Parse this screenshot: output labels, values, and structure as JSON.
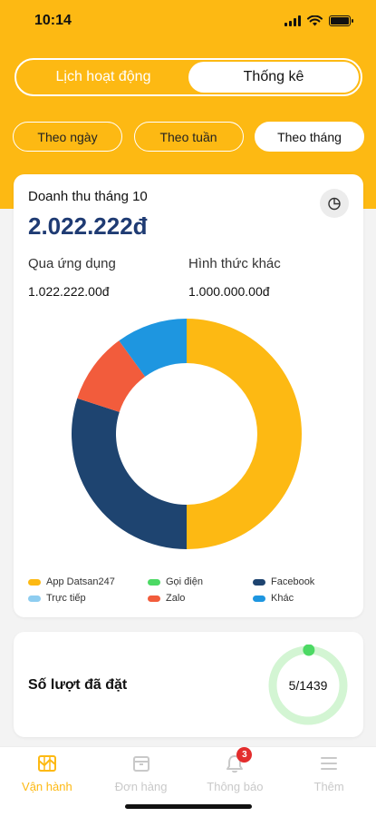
{
  "status_bar": {
    "time": "10:14"
  },
  "view_tabs": [
    {
      "label": "Lịch hoạt động",
      "active": false
    },
    {
      "label": "Thống kê",
      "active": true
    }
  ],
  "period_filters": [
    {
      "label": "Theo ngày",
      "active": false
    },
    {
      "label": "Theo tuần",
      "active": false
    },
    {
      "label": "Theo tháng",
      "active": true
    }
  ],
  "revenue": {
    "title": "Doanh thu tháng 10",
    "total": "2.022.222đ",
    "app_label": "Qua ứng dụng",
    "app_value": "1.022.222.00đ",
    "other_label": "Hình thức khác",
    "other_value": "1.000.000.00đ"
  },
  "chart_data": {
    "type": "pie",
    "categories": [
      "App Datsan247",
      "Gọi điện",
      "Facebook",
      "Trực tiếp",
      "Zalo",
      "Khác"
    ],
    "values": [
      50,
      0,
      30,
      0,
      10,
      10
    ],
    "colors": [
      "#fdb913",
      "#4cd964",
      "#1e4470",
      "#8ecdf0",
      "#f25c3c",
      "#1e96e0"
    ],
    "donut": true
  },
  "booking": {
    "label": "Số lượt đã đặt",
    "value_text": "5/1439",
    "booked": 5,
    "total": 1439,
    "ring_color": "#4cd964",
    "ring_bg_color": "#d3f5d3"
  },
  "tabbar": [
    {
      "label": "Vận hành",
      "icon": "map-icon",
      "active": true
    },
    {
      "label": "Đơn hàng",
      "icon": "box-icon",
      "active": false
    },
    {
      "label": "Thông báo",
      "icon": "bell-icon",
      "active": false,
      "badge": "3"
    },
    {
      "label": "Thêm",
      "icon": "menu-icon",
      "active": false
    }
  ]
}
